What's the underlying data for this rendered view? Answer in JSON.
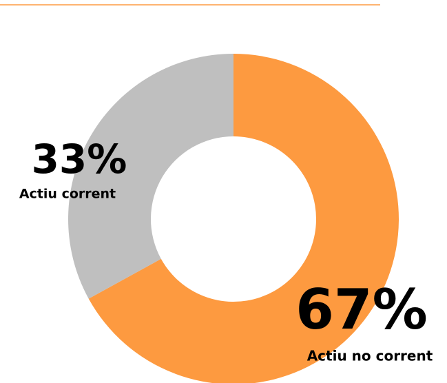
{
  "chart_data": {
    "type": "donut",
    "categories": [
      "Actiu no corrent",
      "Actiu corrent"
    ],
    "values": [
      67,
      33
    ],
    "value_labels": [
      "67%",
      "33%"
    ],
    "colors": [
      "#fd9a40",
      "#bfbfbf"
    ]
  }
}
